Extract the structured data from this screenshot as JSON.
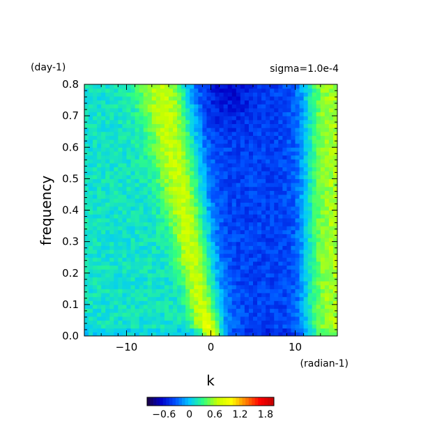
{
  "chart_data": {
    "type": "heatmap",
    "title": "",
    "annotation_left": "(day-1)",
    "annotation_right": "sigma=1.0e-4",
    "ylabel": "frequency",
    "xlabel": "k",
    "x_unit": "(radian-1)",
    "xlim": [
      -15,
      15
    ],
    "ylim": [
      0.0,
      0.8
    ],
    "x_ticks": [
      -10,
      0,
      10
    ],
    "x_tick_labels": [
      "−10",
      "0",
      "10"
    ],
    "y_ticks": [
      0.0,
      0.1,
      0.2,
      0.3,
      0.4,
      0.5,
      0.6,
      0.7,
      0.8
    ],
    "y_tick_labels": [
      "0.0",
      "0.1",
      "0.2",
      "0.3",
      "0.4",
      "0.5",
      "0.6",
      "0.7",
      "0.8"
    ],
    "colorbar": {
      "ticks": [
        -0.6,
        0.0,
        0.6,
        1.2,
        1.8
      ],
      "tick_labels": [
        "−0.6",
        "0",
        "0.6",
        "1.2",
        "1.8"
      ],
      "range": [
        -1.0,
        2.0
      ],
      "colors": [
        "#1a0040",
        "#0000c8",
        "#0050ff",
        "#00c8ff",
        "#30ff80",
        "#c8ff00",
        "#ffff00",
        "#ff8000",
        "#ff0000",
        "#c00000"
      ]
    },
    "grid": false,
    "legend": "colorbar-bottom"
  }
}
